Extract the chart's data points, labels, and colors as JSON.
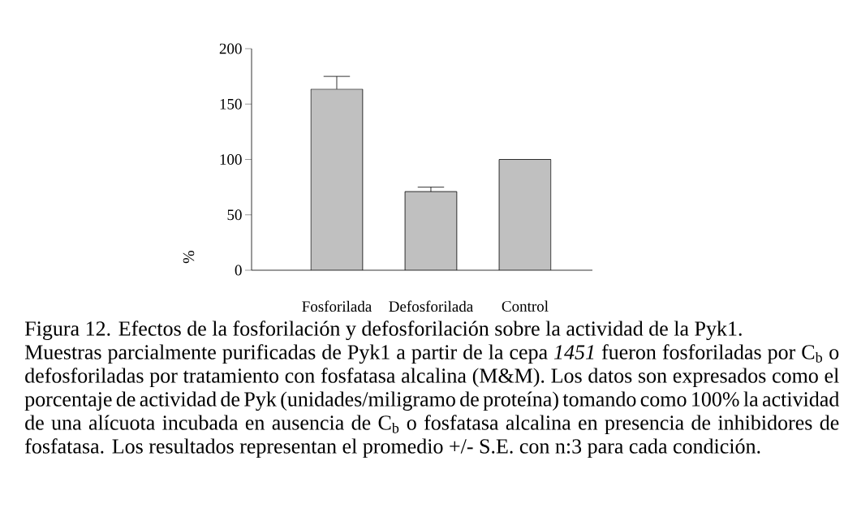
{
  "chart_data": {
    "type": "bar",
    "title": "Figura 12. Efectos de la fosforilación y defosforilación sobre la actividad de la Pyk1.",
    "ylabel": "%",
    "categories": [
      "Fosforilada",
      "Defosforilada",
      "Control"
    ],
    "values": [
      163.5,
      71,
      100
    ],
    "errors": [
      [
        163.5,
        175
      ],
      [
        71,
        75
      ],
      null
    ],
    "color": "#c0c0c0",
    "ylim": [
      0,
      200
    ],
    "yticks": [
      0,
      50,
      100,
      150,
      200
    ],
    "annotations": [
      "Muestras parcialmente purificadas de Pyk1 a partir de la cepa *1451* fueron fosforiladas por C$_{b}$ o defosforiladas por tratamiento con fosfatasa alcalina (M&M). Los datos son expresados como el porcentaje de actividad de Pyk (unidades/miligramo de proteína) tomando como 100% la actividad de una alícuota incubada en ausencia de C$_{b}$ o fosfatasa alcalina en presencia de inhibidores de fosfatasa. Los resultados representan el promedio +/- S.E. con n:3 para cada condición."
    ]
  }
}
